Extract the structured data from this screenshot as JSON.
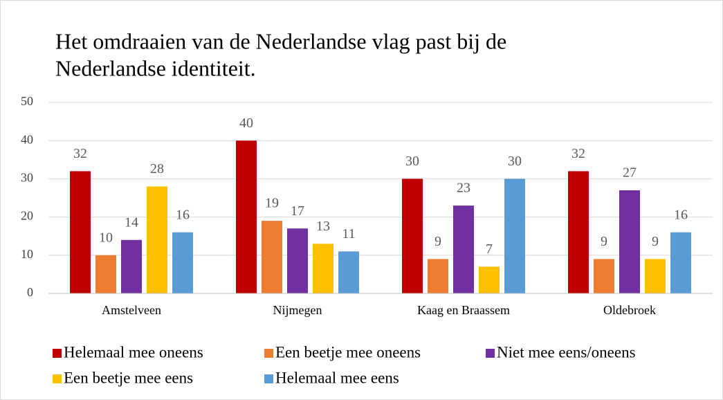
{
  "chart_data": {
    "type": "bar",
    "title": [
      "Het omdraaien van de Nederlandse vlag past bij de",
      "Nederlandse identiteit."
    ],
    "categories": [
      "Amstelveen",
      "Nijmegen",
      "Kaag en Braassem",
      "Oldebroek"
    ],
    "series": [
      {
        "name": "Helemaal mee oneens",
        "color": "#c00000",
        "values": [
          32,
          40,
          30,
          32
        ]
      },
      {
        "name": "Een beetje mee oneens",
        "color": "#ed7d31",
        "values": [
          10,
          19,
          9,
          9
        ]
      },
      {
        "name": "Niet mee eens/oneens",
        "color": "#7030a0",
        "values": [
          14,
          17,
          23,
          27
        ]
      },
      {
        "name": "Een beetje mee eens",
        "color": "#ffc000",
        "values": [
          28,
          13,
          7,
          9
        ]
      },
      {
        "name": "Helemaal mee eens",
        "color": "#5b9bd5",
        "values": [
          16,
          11,
          30,
          16
        ]
      }
    ],
    "ylim": [
      0,
      50
    ],
    "yticks": [
      0,
      10,
      20,
      30,
      40,
      50
    ],
    "grid": true,
    "legend": "bottom"
  }
}
